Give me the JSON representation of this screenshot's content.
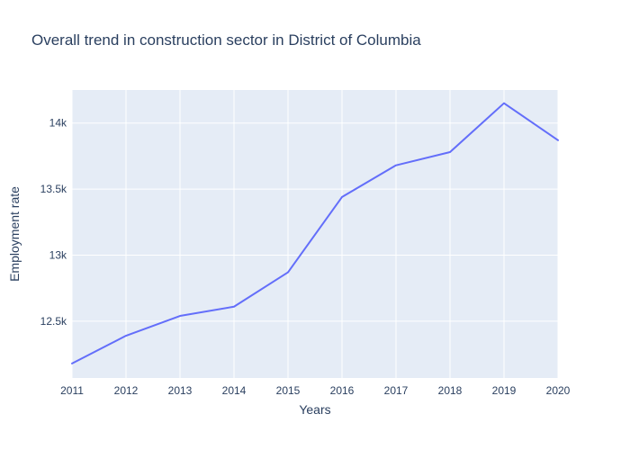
{
  "chart_data": {
    "type": "line",
    "title": "Overall trend in construction sector in District of Columbia",
    "xlabel": "Years",
    "ylabel": "Employment rate",
    "x": [
      2011,
      2012,
      2013,
      2014,
      2015,
      2016,
      2017,
      2018,
      2019,
      2020
    ],
    "series": [
      {
        "values": [
          12180,
          12390,
          12540,
          12610,
          12870,
          13440,
          13680,
          13780,
          14150,
          13870
        ]
      }
    ],
    "xlim": [
      2011,
      2020
    ],
    "ylim": [
      12070,
      14250
    ],
    "x_ticks": [
      2011,
      2012,
      2013,
      2014,
      2015,
      2016,
      2017,
      2018,
      2019,
      2020
    ],
    "y_ticks": [
      {
        "value": 12500,
        "label": "12.5k"
      },
      {
        "value": 13000,
        "label": "13k"
      },
      {
        "value": 13500,
        "label": "13.5k"
      },
      {
        "value": 14000,
        "label": "14k"
      }
    ],
    "grid": true,
    "legend": "none",
    "colors": {
      "line": "#636efa",
      "plot_background": "#e5ecf6",
      "grid": "#ffffff",
      "text": "#2a3f5f"
    }
  }
}
